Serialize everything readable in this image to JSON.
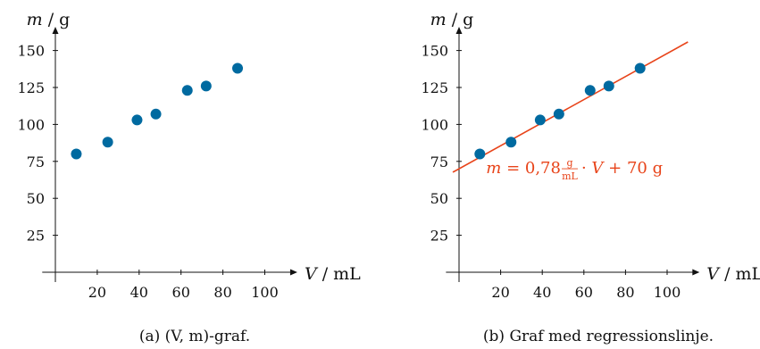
{
  "colors": {
    "point": "#006aa0",
    "line": "#e8441a",
    "axis": "#111111"
  },
  "chart_data": [
    {
      "type": "scatter",
      "caption": "(a)  (V, m)-graf.",
      "xaxis": {
        "symbol": "V",
        "unit": "mL",
        "ticks": [
          20,
          40,
          60,
          80,
          100
        ],
        "range": [
          -5,
          110
        ]
      },
      "yaxis": {
        "symbol": "m",
        "unit": "g",
        "ticks": [
          25,
          50,
          75,
          100,
          125,
          150
        ],
        "range": [
          0,
          160
        ]
      },
      "x": [
        10,
        25,
        39,
        48,
        63,
        72,
        87
      ],
      "y": [
        80,
        88,
        103,
        107,
        123,
        126,
        138
      ]
    },
    {
      "type": "scatter",
      "caption": "(b)  Graf med regressionslinje.",
      "xaxis": {
        "symbol": "V",
        "unit": "mL",
        "ticks": [
          20,
          40,
          60,
          80,
          100
        ],
        "range": [
          -5,
          110
        ]
      },
      "yaxis": {
        "symbol": "m",
        "unit": "g",
        "ticks": [
          25,
          50,
          75,
          100,
          125,
          150
        ],
        "range": [
          0,
          160
        ]
      },
      "x": [
        10,
        25,
        39,
        48,
        63,
        72,
        87
      ],
      "y": [
        80,
        88,
        103,
        107,
        123,
        126,
        138
      ],
      "regression": {
        "slope": 0.78,
        "intercept": 70,
        "x_range": [
          -3,
          110
        ],
        "label": {
          "lhs": "m",
          "eq": "=",
          "coef": "0,78",
          "frac_num": "g",
          "frac_den": "mL",
          "dot": "·",
          "var": "V",
          "plus": "+",
          "const": "70 g"
        }
      }
    }
  ]
}
